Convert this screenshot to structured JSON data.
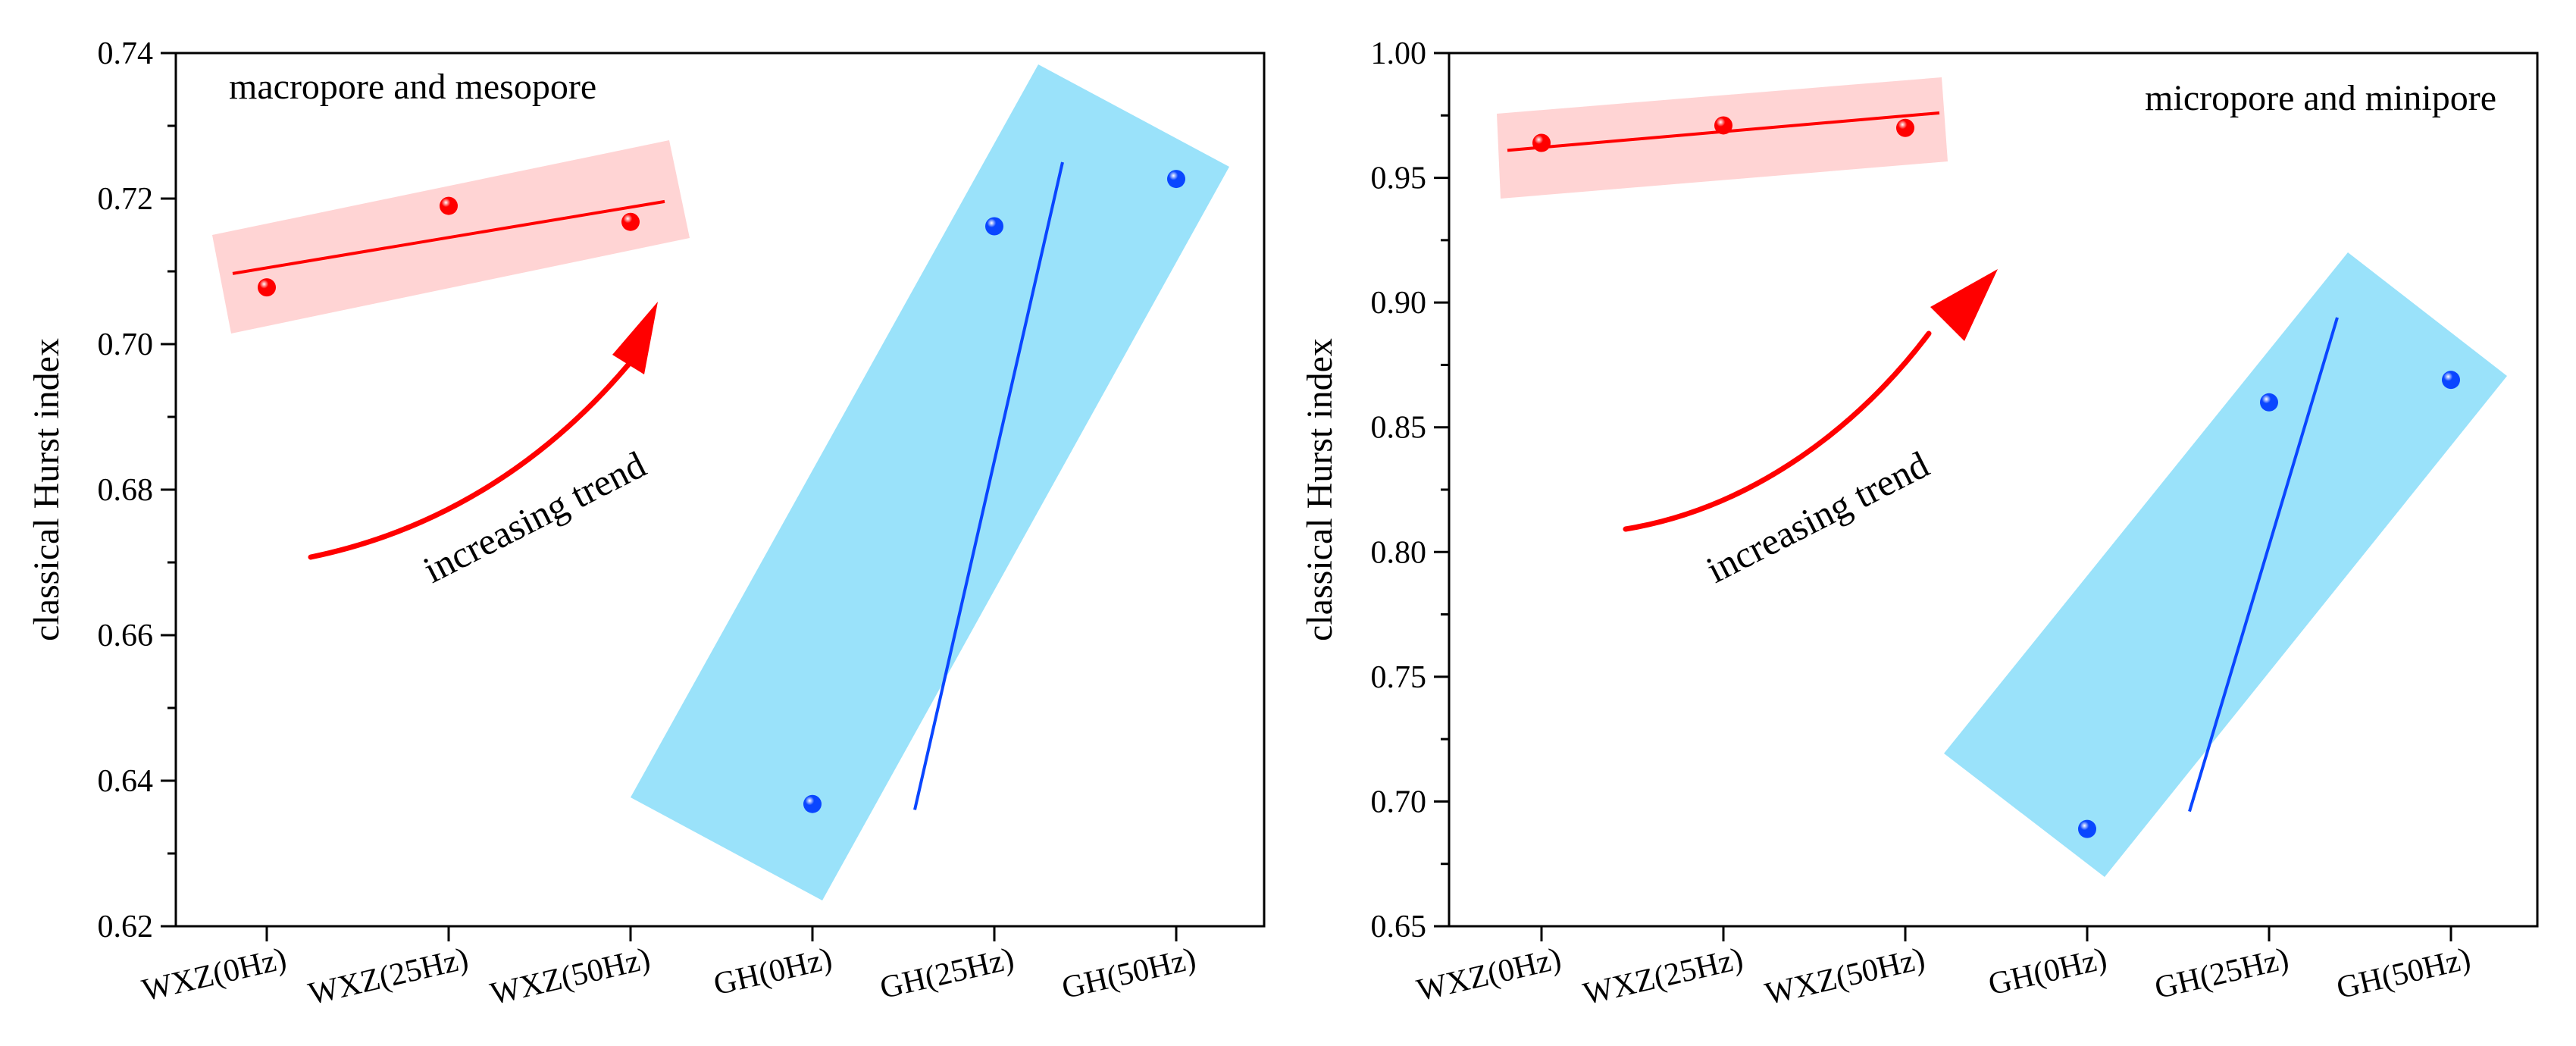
{
  "chart_data": [
    {
      "type": "scatter",
      "categories": [
        "WXZ(0Hz)",
        "WXZ(25Hz)",
        "WXZ(50Hz)",
        "GH(0Hz)",
        "GH(25Hz)",
        "GH(50Hz)"
      ],
      "ylabel": "classical Hurst index",
      "ylim": [
        0.62,
        0.74
      ],
      "yticks": [
        "0.62",
        "0.64",
        "0.66",
        "0.68",
        "0.70",
        "0.72",
        "0.74"
      ],
      "annotation": "macropore and mesopore",
      "trend_label": "increasing trend",
      "series": [
        {
          "name": "WXZ",
          "color": "#ff0000",
          "band_color": "#ffd4d4",
          "x": [
            0,
            1,
            2
          ],
          "values": [
            0.7078,
            0.719,
            0.7168
          ],
          "fit": [
            0.7097,
            0.7196
          ]
        },
        {
          "name": "GH",
          "color": "#0a46ff",
          "band_color": "#9ae2fa",
          "x": [
            3,
            4,
            5
          ],
          "values": [
            0.6368,
            0.7162,
            0.7227
          ],
          "fit": [
            0.636,
            0.725
          ]
        }
      ]
    },
    {
      "type": "scatter",
      "categories": [
        "WXZ(0Hz)",
        "WXZ(25Hz)",
        "WXZ(50Hz)",
        "GH(0Hz)",
        "GH(25Hz)",
        "GH(50Hz)"
      ],
      "ylabel": "classical Hurst index",
      "ylim": [
        0.65,
        1.0
      ],
      "yticks": [
        "0.65",
        "0.70",
        "0.75",
        "0.80",
        "0.85",
        "0.90",
        "0.95",
        "1.00"
      ],
      "annotation": "micropore and minipore",
      "trend_label": "increasing trend",
      "series": [
        {
          "name": "WXZ",
          "color": "#ff0000",
          "band_color": "#ffd4d4",
          "x": [
            0,
            1,
            2
          ],
          "values": [
            0.964,
            0.971,
            0.97
          ],
          "fit": [
            0.961,
            0.976
          ]
        },
        {
          "name": "GH",
          "color": "#0a46ff",
          "band_color": "#9ae2fa",
          "x": [
            3,
            4,
            5
          ],
          "values": [
            0.689,
            0.86,
            0.869
          ],
          "fit": [
            0.696,
            0.894
          ]
        }
      ]
    }
  ]
}
